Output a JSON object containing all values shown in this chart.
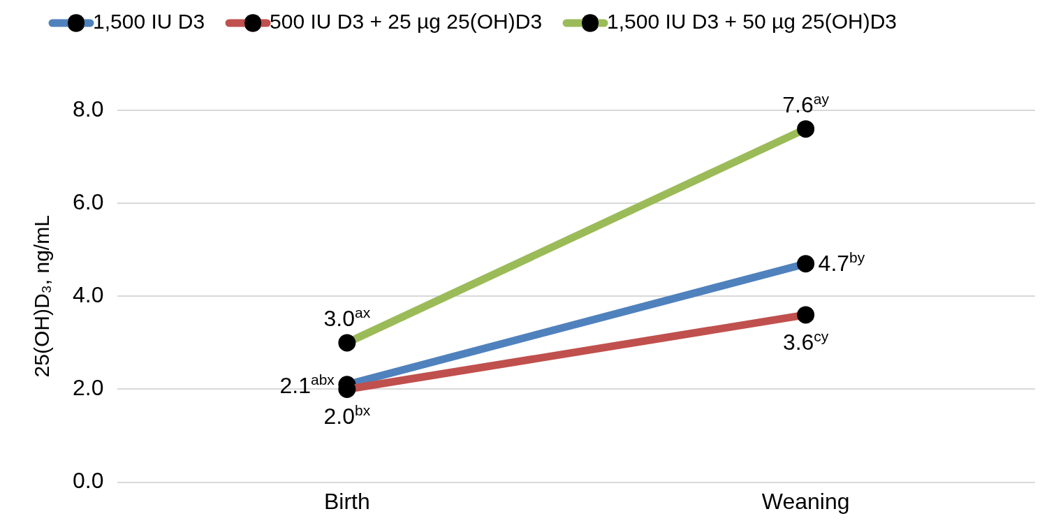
{
  "chart_data": {
    "type": "line",
    "ylabel": "25(OH)D₃, ng/mL",
    "categories": [
      "Birth",
      "Weaning"
    ],
    "series": [
      {
        "name": "1,500 IU D3",
        "color": "#4f81bd",
        "values": [
          2.1,
          4.7
        ],
        "value_labels": [
          "2.1$^{abx}$",
          "4.7$^{by}$"
        ]
      },
      {
        "name": "500 IU D3 + 25 µg 25(OH)D3",
        "color": "#c0504d",
        "values": [
          2.0,
          3.6
        ],
        "value_labels": [
          "2.0$^{bx}$",
          "3.6$^{cy}$"
        ]
      },
      {
        "name": "1,500 IU D3 + 50 µg 25(OH)D3",
        "color": "#9bbb59",
        "values": [
          3.0,
          7.6
        ],
        "value_labels": [
          "3.0$^{ax}$",
          "7.6$^{ay}$"
        ]
      }
    ],
    "ylim": [
      0,
      8
    ],
    "yticks": [
      {
        "value": 0,
        "label": "0.0"
      },
      {
        "value": 2,
        "label": "2.0"
      },
      {
        "value": 4,
        "label": "4.0"
      },
      {
        "value": 6,
        "label": "6.0"
      },
      {
        "value": 8,
        "label": "8.0"
      }
    ],
    "grid": "y",
    "legend": "top",
    "marker": "circle",
    "line_style": "solid"
  }
}
